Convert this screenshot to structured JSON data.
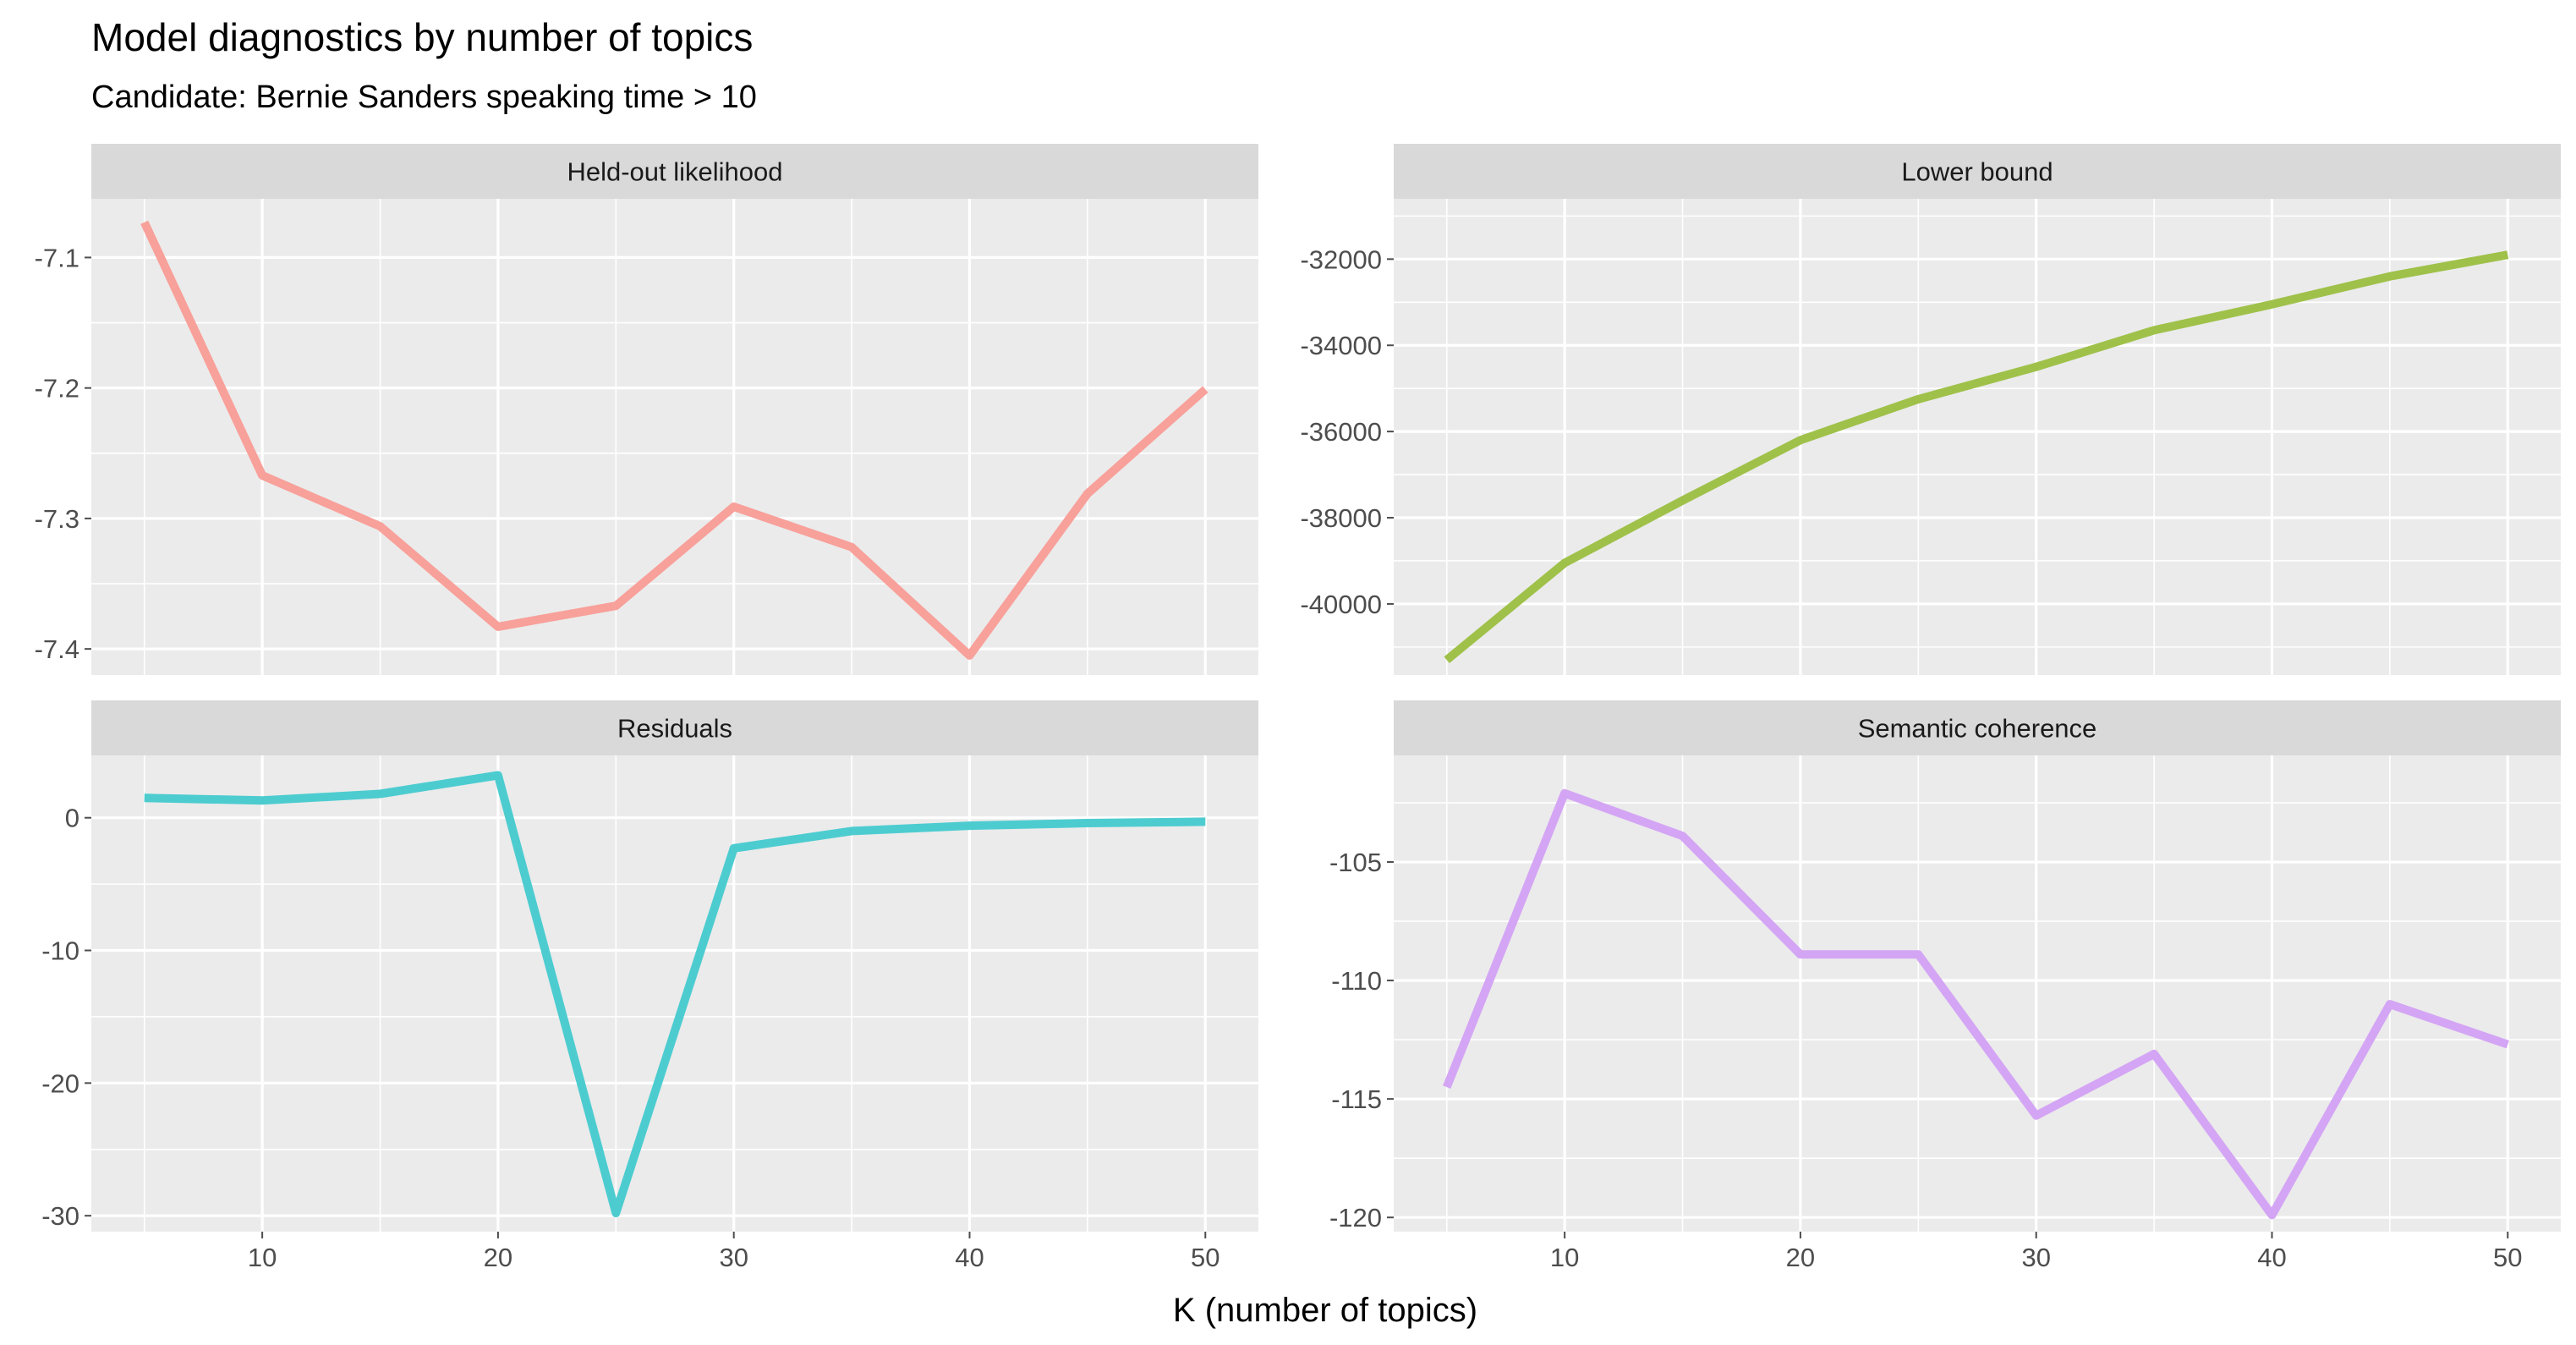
{
  "title": "Model diagnostics by number of topics",
  "subtitle": "Candidate: Bernie Sanders speaking time >  10",
  "xlabel": "K (number of topics)",
  "colors": {
    "panel_bg": "#EBEBEB",
    "strip_bg": "#D9D9D9",
    "grid": "#FFFFFF",
    "tick": "#4D4D4D"
  },
  "chart_data": [
    {
      "type": "line",
      "panel": "Held-out likelihood",
      "color": "#F8A09A",
      "x": [
        5,
        10,
        15,
        20,
        25,
        30,
        35,
        40,
        45,
        50
      ],
      "y": [
        -7.073,
        -7.267,
        -7.306,
        -7.383,
        -7.367,
        -7.291,
        -7.322,
        -7.405,
        -7.281,
        -7.201
      ],
      "xlim": [
        2.75,
        52.25
      ],
      "ylim": [
        -7.42,
        -7.055
      ],
      "xticks": [
        10,
        20,
        30,
        40,
        50
      ],
      "yticks": [
        -7.1,
        -7.2,
        -7.3,
        -7.4
      ],
      "ytick_labels": [
        "-7.1",
        "-7.2",
        "-7.3",
        "-7.4"
      ]
    },
    {
      "type": "line",
      "panel": "Lower bound",
      "color": "#9FC14A",
      "x": [
        5,
        10,
        15,
        20,
        25,
        30,
        35,
        40,
        45,
        50
      ],
      "y": [
        -41300,
        -39050,
        -37600,
        -36200,
        -35250,
        -34500,
        -33650,
        -33050,
        -32400,
        -31900
      ],
      "xlim": [
        2.75,
        52.25
      ],
      "ylim": [
        -41650,
        -30600
      ],
      "xticks": [
        10,
        20,
        30,
        40,
        50
      ],
      "yticks": [
        -32000,
        -34000,
        -36000,
        -38000,
        -40000
      ],
      "ytick_labels": [
        "-32000",
        "-34000",
        "-36000",
        "-38000",
        "-40000"
      ]
    },
    {
      "type": "line",
      "panel": "Residuals",
      "color": "#4DCCD0",
      "x": [
        5,
        10,
        15,
        20,
        25,
        30,
        35,
        40,
        45,
        50
      ],
      "y": [
        1.5,
        1.3,
        1.8,
        3.2,
        -29.8,
        -2.3,
        -1.0,
        -0.6,
        -0.4,
        -0.3
      ],
      "xlim": [
        2.75,
        52.25
      ],
      "ylim": [
        -31.2,
        4.7
      ],
      "xticks": [
        10,
        20,
        30,
        40,
        50
      ],
      "yticks": [
        0,
        -10,
        -20,
        -30
      ],
      "ytick_labels": [
        "0",
        "-10",
        "-20",
        "-30"
      ]
    },
    {
      "type": "line",
      "panel": "Semantic coherence",
      "color": "#D4A5F4",
      "x": [
        5,
        10,
        15,
        20,
        25,
        30,
        35,
        40,
        45,
        50
      ],
      "y": [
        -114.5,
        -102.1,
        -103.9,
        -108.9,
        -108.9,
        -115.7,
        -113.1,
        -119.9,
        -111.0,
        -112.7
      ],
      "xlim": [
        2.75,
        52.25
      ],
      "ylim": [
        -120.6,
        -100.5
      ],
      "xticks": [
        10,
        20,
        30,
        40,
        50
      ],
      "yticks": [
        -105,
        -110,
        -115,
        -120
      ],
      "ytick_labels": [
        "-105",
        "-110",
        "-115",
        "-120"
      ]
    }
  ]
}
